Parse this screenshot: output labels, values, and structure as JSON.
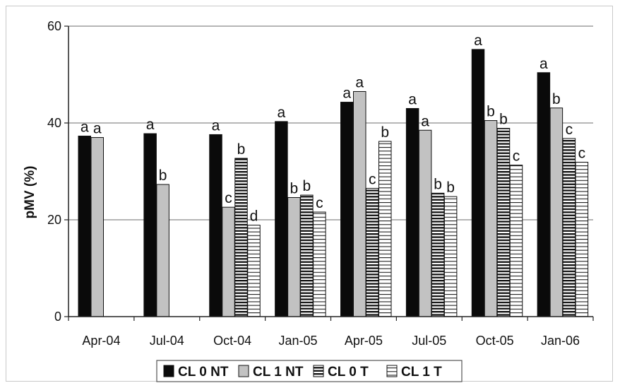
{
  "chart_data": {
    "type": "bar",
    "ylabel": "pMV (%)",
    "xlabel": "",
    "ylim": [
      0,
      60
    ],
    "yticks": [
      0,
      20,
      40,
      60
    ],
    "grid": true,
    "legend_position": "bottom",
    "categories": [
      "Apr-04",
      "Jul-04",
      "Oct-04",
      "Jan-05",
      "Apr-05",
      "Jul-05",
      "Oct-05",
      "Jan-06"
    ],
    "series": [
      {
        "name": "CL 0 NT",
        "fill": "solid",
        "color": "#0a0a0a",
        "values": [
          37.3,
          37.8,
          37.6,
          40.3,
          44.3,
          43.0,
          55.2,
          50.4
        ],
        "labels": [
          "a",
          "a",
          "a",
          "a",
          "a",
          "a",
          "a",
          "a"
        ]
      },
      {
        "name": "CL 1 NT",
        "fill": "solid",
        "color": "#c2c2c2",
        "values": [
          37.0,
          27.3,
          22.6,
          24.6,
          46.5,
          38.5,
          40.5,
          43.1
        ],
        "labels": [
          "a",
          "b",
          "c",
          "b",
          "a",
          "a",
          "b",
          "b"
        ]
      },
      {
        "name": "CL 0 T",
        "fill": "horizontal-stripes",
        "color": "#111111",
        "values": [
          null,
          null,
          32.7,
          25.1,
          26.5,
          25.5,
          38.9,
          36.8
        ],
        "labels": [
          "",
          "",
          "b",
          "b",
          "c",
          "b",
          "b",
          "c"
        ]
      },
      {
        "name": "CL 1 T",
        "fill": "horizontal-stripes-light",
        "color": "#111111",
        "values": [
          null,
          null,
          18.9,
          21.6,
          36.2,
          24.8,
          31.3,
          31.9
        ],
        "labels": [
          "",
          "",
          "d",
          "c",
          "b",
          "b",
          "c",
          "c"
        ]
      }
    ]
  }
}
